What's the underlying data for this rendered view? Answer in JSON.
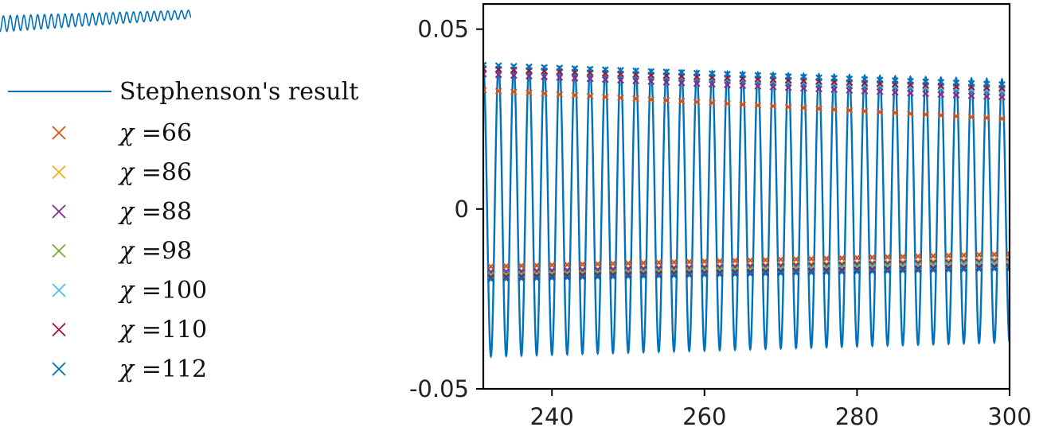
{
  "chart_data": {
    "type": "line",
    "title": "",
    "xlabel": "",
    "ylabel": "",
    "xlim": [
      231,
      300
    ],
    "ylim": [
      -0.05,
      0.057
    ],
    "x_ticks": [
      240,
      260,
      280,
      300
    ],
    "x_tick_labels": [
      "240",
      "260",
      "280",
      "300"
    ],
    "y_ticks": [
      0.05,
      0,
      -0.05
    ],
    "y_tick_labels": [
      "0.05",
      "0",
      "-0.05"
    ],
    "legend_placement": "left, outside",
    "line_series": {
      "name": "Stephenson's result",
      "color": "#0072BD",
      "period": 2,
      "first_peak_x": 231,
      "peak_at_start": 0.04,
      "peak_at_end": 0.036,
      "trough_at_start": -0.041,
      "trough_at_end": -0.037
    },
    "marker_series": [
      {
        "name": "χ =66",
        "chi": "66",
        "color": "#D95319",
        "peak": [
          0.033,
          0.025
        ],
        "trough": [
          -0.016,
          -0.0125
        ]
      },
      {
        "name": "χ =86",
        "chi": "86",
        "color": "#EDB120",
        "peak": [
          0.0375,
          0.031
        ],
        "trough": [
          -0.0175,
          -0.014
        ]
      },
      {
        "name": "χ =88",
        "chi": "88",
        "color": "#7E2F8E",
        "peak": [
          0.0375,
          0.031
        ],
        "trough": [
          -0.0175,
          -0.0145
        ]
      },
      {
        "name": "χ =98",
        "chi": "98",
        "color": "#77AC30",
        "peak": [
          0.039,
          0.033
        ],
        "trough": [
          -0.0185,
          -0.015
        ]
      },
      {
        "name": "χ =100",
        "chi": "100",
        "color": "#4DBEEE",
        "peak": [
          0.039,
          0.033
        ],
        "trough": [
          -0.019,
          -0.0155
        ]
      },
      {
        "name": "χ =110",
        "chi": "110",
        "color": "#A2142F",
        "peak": [
          0.039,
          0.0335
        ],
        "trough": [
          -0.019,
          -0.016
        ]
      },
      {
        "name": "χ =112",
        "chi": "112",
        "color": "#0072BD",
        "peak": [
          0.04,
          0.0345
        ],
        "trough": [
          -0.0195,
          -0.0165
        ]
      }
    ],
    "marker_x_start": 231,
    "marker_x_end": 300,
    "marker_spacing": 2
  },
  "legend": {
    "line_label": "Stephenson's result",
    "chi_symbol": "χ",
    "chi_prefix": " ="
  }
}
